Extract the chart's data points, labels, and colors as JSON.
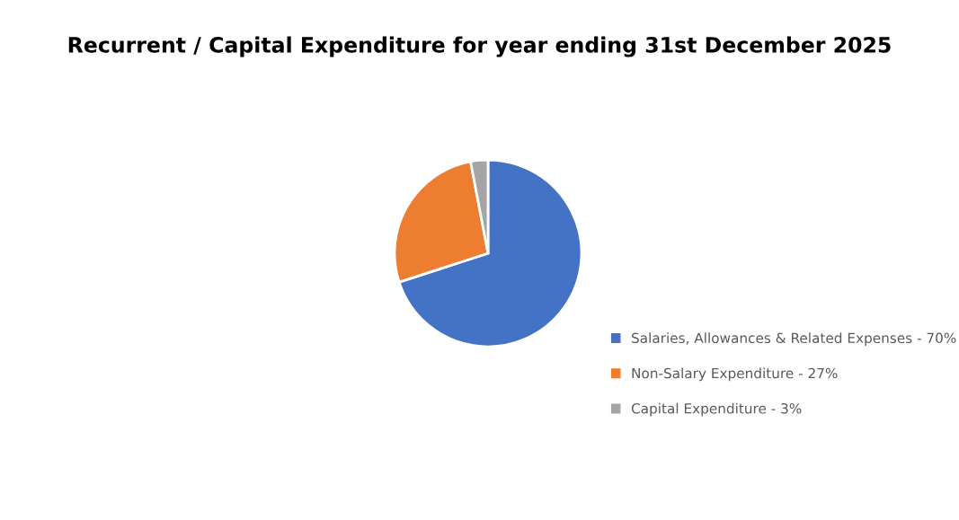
{
  "chart_data": {
    "type": "pie",
    "title": "Recurrent / Capital Expenditure for year ending 31st December 2025",
    "categories": [
      "Salaries, Allowances & Related Expenses - 70%",
      "Non-Salary Expenditure - 27%",
      "Capital Expenditure - 3%"
    ],
    "values": [
      70,
      27,
      3
    ],
    "colors": [
      "#4472c4",
      "#ed7d31",
      "#a5a5a5"
    ],
    "legend": "right"
  }
}
